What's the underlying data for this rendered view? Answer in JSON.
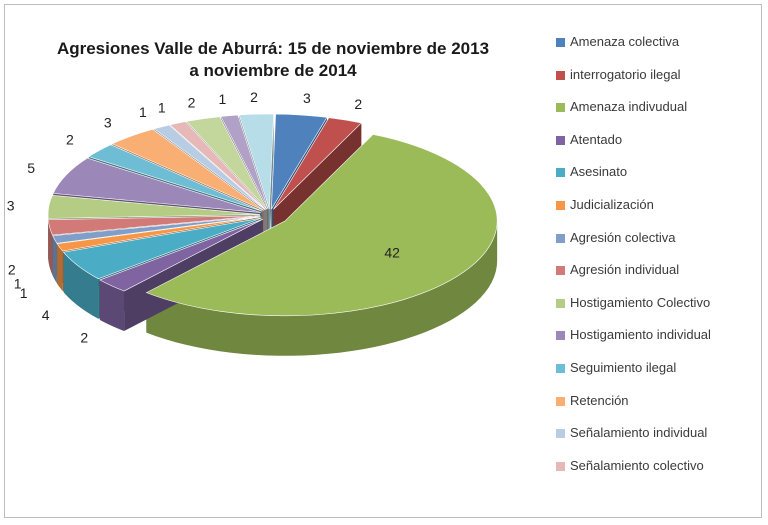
{
  "chart_data": {
    "type": "pie",
    "title": "Agresiones Valle de Aburrá:  15 de noviembre de 2013",
    "subtitle": "a noviembre de 2014",
    "legend_placement": "right",
    "slices": [
      {
        "label": "Amenaza colectiva",
        "value": 3,
        "color": "#4f81bd"
      },
      {
        "label": "interrogatorio ilegal",
        "value": 2,
        "color": "#c0504d"
      },
      {
        "label": "Amenaza indivudual",
        "value": 42,
        "color": "#9bbb59"
      },
      {
        "label": "Atentado",
        "value": 2,
        "color": "#8064a2"
      },
      {
        "label": "Asesinato",
        "value": 4,
        "color": "#4bacc6"
      },
      {
        "label": "Judicialización",
        "value": 1,
        "color": "#f79646"
      },
      {
        "label": "Agresión colectiva",
        "value": 1,
        "color": "#7f9fc9"
      },
      {
        "label": "Agresión individual",
        "value": 2,
        "color": "#d17a77"
      },
      {
        "label": "Hostigamiento Colectivo",
        "value": 3,
        "color": "#b5cc85"
      },
      {
        "label": "Hostigamiento individual",
        "value": 5,
        "color": "#9c88b8"
      },
      {
        "label": "Seguimiento ilegal",
        "value": 2,
        "color": "#6fbdd4"
      },
      {
        "label": "Retención",
        "value": 3,
        "color": "#f9ae73"
      },
      {
        "label": "Señalamiento individual",
        "value": 1,
        "color": "#b8cce4"
      },
      {
        "label": "Señalamiento colectivo",
        "value": 1,
        "color": "#e6b9b8"
      },
      {
        "label": "",
        "value": 2,
        "color": "#c3d69b"
      },
      {
        "label": "",
        "value": 1,
        "color": "#b2a1c7"
      },
      {
        "label": "",
        "value": 2,
        "color": "#b7dde8"
      }
    ]
  }
}
